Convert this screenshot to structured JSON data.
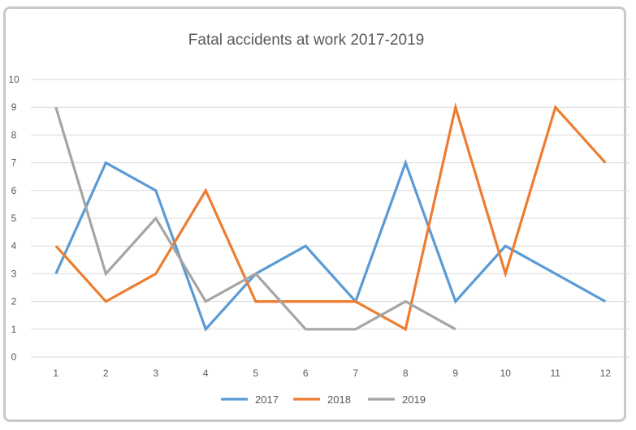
{
  "chart_data": {
    "type": "line",
    "title": "Fatal accidents at work 2017-2019",
    "xlabel": "",
    "ylabel": "",
    "x": [
      1,
      2,
      3,
      4,
      5,
      6,
      7,
      8,
      9,
      10,
      11,
      12
    ],
    "ylim": [
      0,
      10
    ],
    "yticks": [
      0,
      1,
      2,
      3,
      4,
      5,
      6,
      7,
      8,
      9,
      10
    ],
    "grid": true,
    "legend_position": "bottom",
    "series": [
      {
        "name": "2017",
        "color": "#5b9bd5",
        "values": [
          3,
          7,
          6,
          1,
          3,
          4,
          2,
          7,
          2,
          4,
          3,
          2
        ]
      },
      {
        "name": "2018",
        "color": "#ed7d31",
        "values": [
          4,
          2,
          3,
          6,
          2,
          2,
          2,
          1,
          9,
          3,
          9,
          7
        ]
      },
      {
        "name": "2019",
        "color": "#a5a5a5",
        "values": [
          9,
          3,
          5,
          2,
          3,
          1,
          1,
          2,
          1,
          null,
          null,
          null
        ]
      }
    ]
  }
}
